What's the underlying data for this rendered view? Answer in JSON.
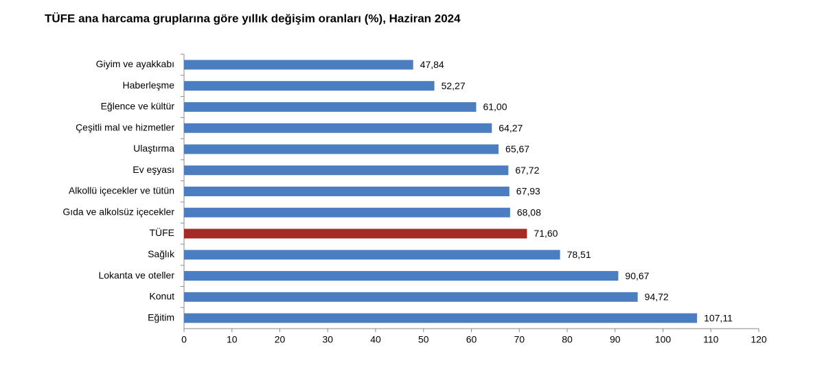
{
  "chart_data": {
    "type": "bar",
    "orientation": "horizontal",
    "title": "TÜFE ana harcama gruplarına göre yıllık değişim oranları (%), Haziran 2024",
    "categories": [
      "Giyim ve ayakkabı",
      "Haberleşme",
      "Eğlence ve kültür",
      "Çeşitli mal ve hizmetler",
      "Ulaştırma",
      "Ev eşyası",
      "Alkollü içecekler ve tütün",
      "Gıda ve alkolsüz içecekler",
      "TÜFE",
      "Sağlık",
      "Lokanta ve oteller",
      "Konut",
      "Eğitim"
    ],
    "values": [
      47.84,
      52.27,
      61.0,
      64.27,
      65.67,
      67.72,
      67.93,
      68.08,
      71.6,
      78.51,
      90.67,
      94.72,
      107.11
    ],
    "value_labels": [
      "47,84",
      "52,27",
      "61,00",
      "64,27",
      "65,67",
      "67,72",
      "67,93",
      "68,08",
      "71,60",
      "78,51",
      "90,67",
      "94,72",
      "107,11"
    ],
    "colors": [
      "#4a7ec0",
      "#4a7ec0",
      "#4a7ec0",
      "#4a7ec0",
      "#4a7ec0",
      "#4a7ec0",
      "#4a7ec0",
      "#4a7ec0",
      "#a52a26",
      "#4a7ec0",
      "#4a7ec0",
      "#4a7ec0",
      "#4a7ec0"
    ],
    "xlim": [
      0,
      120
    ],
    "xticks": [
      0,
      10,
      20,
      30,
      40,
      50,
      60,
      70,
      80,
      90,
      100,
      110,
      120
    ],
    "grid": false
  }
}
